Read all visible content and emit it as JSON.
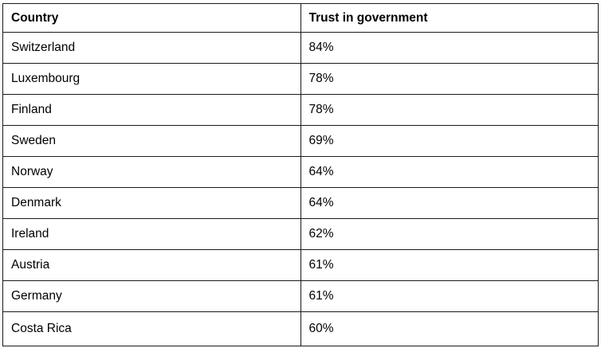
{
  "chart_data": {
    "type": "table",
    "title": "",
    "columns": [
      "Country",
      "Trust in government"
    ],
    "categories": [
      "Switzerland",
      "Luxembourg",
      "Finland",
      "Sweden",
      "Norway",
      "Denmark",
      "Ireland",
      "Austria",
      "Germany",
      "Costa Rica"
    ],
    "values": [
      84,
      78,
      78,
      69,
      64,
      64,
      62,
      61,
      61,
      60
    ],
    "value_format": "percent",
    "legend_position": "none",
    "grid": "full-borders"
  },
  "table": {
    "columns": [
      "Country",
      "Trust in government"
    ],
    "rows": [
      {
        "country": "Switzerland",
        "trust": "84%"
      },
      {
        "country": "Luxembourg",
        "trust": "78%"
      },
      {
        "country": "Finland",
        "trust": "78%"
      },
      {
        "country": "Sweden",
        "trust": "69%"
      },
      {
        "country": "Norway",
        "trust": "64%"
      },
      {
        "country": "Denmark",
        "trust": "64%"
      },
      {
        "country": "Ireland",
        "trust": "62%"
      },
      {
        "country": "Austria",
        "trust": "61%"
      },
      {
        "country": "Germany",
        "trust": "61%"
      },
      {
        "country": "Costa Rica",
        "trust": "60%"
      }
    ]
  },
  "colors": {
    "border": "#1a1a1a",
    "text": "#000000",
    "background": "#ffffff"
  }
}
